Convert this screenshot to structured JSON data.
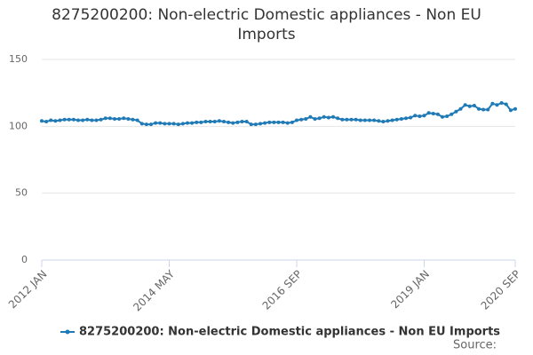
{
  "chart_data": {
    "type": "line",
    "title": "8275200200: Non-electric Domestic appliances - Non EU Imports",
    "source": "Source:",
    "categories": [
      "2012 JAN",
      null,
      null,
      null,
      null,
      null,
      null,
      null,
      null,
      null,
      null,
      null,
      null,
      null,
      null,
      null,
      null,
      null,
      null,
      null,
      null,
      null,
      null,
      null,
      null,
      null,
      null,
      null,
      "2014 MAY",
      null,
      null,
      null,
      null,
      null,
      null,
      null,
      null,
      null,
      null,
      null,
      null,
      null,
      null,
      null,
      null,
      null,
      null,
      null,
      null,
      null,
      null,
      null,
      null,
      null,
      null,
      null,
      "2016 SEP",
      null,
      null,
      null,
      null,
      null,
      null,
      null,
      null,
      null,
      null,
      null,
      null,
      null,
      null,
      null,
      null,
      null,
      null,
      null,
      null,
      null,
      null,
      null,
      null,
      null,
      null,
      null,
      "2019 JAN",
      null,
      null,
      null,
      null,
      null,
      null,
      null,
      null,
      null,
      null,
      null,
      null,
      null,
      null,
      null,
      null,
      null,
      null,
      null,
      "2020 SEP"
    ],
    "series": [
      {
        "name": "8275200200: Non-electric Domestic appliances - Non EU Imports",
        "color": "#1f7ab6",
        "values": [
          104,
          103.5,
          104.5,
          104,
          104.5,
          105,
          105,
          105,
          104.5,
          104.5,
          105,
          104.5,
          104.5,
          105,
          106,
          106,
          105.5,
          105.5,
          106,
          105.5,
          105,
          104.5,
          102,
          101.5,
          101.5,
          102.5,
          102.5,
          102,
          102,
          102,
          101.5,
          102,
          102.5,
          102.5,
          103,
          103,
          103.5,
          103.5,
          103.5,
          104,
          103.5,
          103,
          102.5,
          103,
          103.5,
          103.5,
          101.5,
          101.5,
          102,
          102.5,
          103,
          103,
          103,
          103,
          102.5,
          103,
          104.5,
          105,
          105.5,
          107,
          105.5,
          106,
          107,
          106.5,
          107,
          106,
          105,
          105,
          105,
          105,
          104.5,
          104.5,
          104.5,
          104.5,
          104,
          103.5,
          104,
          104.5,
          105,
          105.5,
          106,
          106.5,
          108,
          107.5,
          108,
          110,
          109.5,
          109,
          107,
          107.5,
          109,
          111,
          113,
          116,
          115,
          115.5,
          113,
          112.5,
          112.5,
          117,
          116,
          117.5,
          116.5,
          112,
          113
        ]
      }
    ],
    "ylim": [
      0,
      150
    ],
    "yticks": [
      0,
      50,
      100,
      150
    ],
    "grid": true,
    "legend": "bottom"
  }
}
